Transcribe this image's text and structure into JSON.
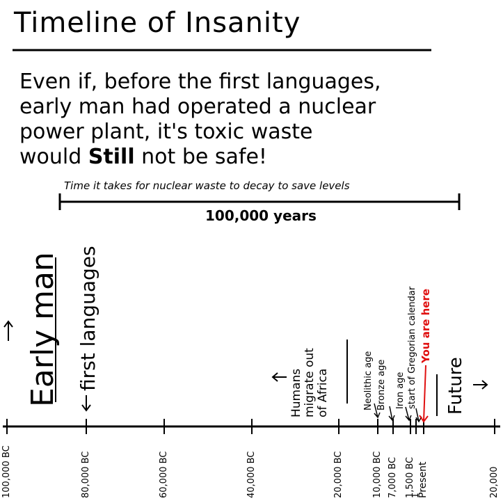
{
  "title": "Timeline of Insanity",
  "statement": {
    "lines": [
      "Even if, before the first languages,",
      "early man had operated a nuclear",
      "power plant, it's toxic waste",
      [
        "would ",
        "Still",
        " not be safe!"
      ]
    ]
  },
  "decay_span": {
    "label": "Time it takes for nuclear waste to decay to save levels",
    "duration": "100,000 years",
    "start_year": -100000,
    "end_year": 0
  },
  "timeline": {
    "ticks": [
      {
        "year": -100000,
        "label": "100,000 BC"
      },
      {
        "year": -80000,
        "label": "80,000 BC"
      },
      {
        "year": -60000,
        "label": "60,000 BC"
      },
      {
        "year": -40000,
        "label": "40,000 BC"
      },
      {
        "year": -20000,
        "label": "20,000 BC"
      },
      {
        "year": -10000,
        "label": "10,000 BC"
      },
      {
        "year": -7000,
        "label": "7,000 BC"
      },
      {
        "year": -1500,
        "label": "1,500 BC"
      },
      {
        "year": 1,
        "label": "1"
      },
      {
        "year": 2000,
        "label": "Present"
      },
      {
        "year": 20000,
        "label": "20,000"
      }
    ],
    "events": [
      {
        "id": "early-man",
        "label": "Early man",
        "underline": true
      },
      {
        "id": "first-languages",
        "label": "first languages",
        "arrow": "down"
      },
      {
        "id": "humans-migrate",
        "label": "Humans migrate out of Africa"
      },
      {
        "id": "neolithic",
        "label": "Neolithic age"
      },
      {
        "id": "bronze",
        "label": "Bronze age"
      },
      {
        "id": "iron",
        "label": "Iron age"
      },
      {
        "id": "gregorian",
        "label": "start of Gregorian calendar"
      },
      {
        "id": "you-are-here",
        "label": "You are here",
        "color": "#e01010"
      },
      {
        "id": "future",
        "label": "Future"
      }
    ]
  }
}
